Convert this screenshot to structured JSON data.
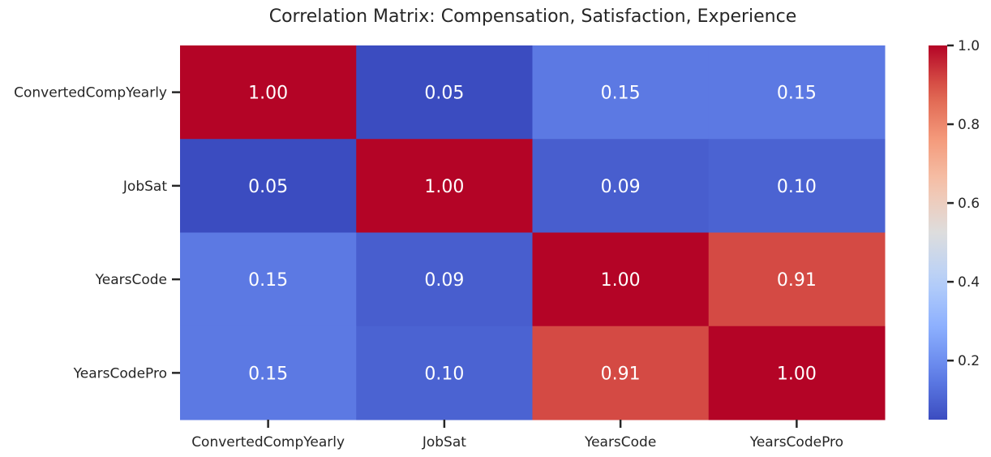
{
  "chart_data": {
    "type": "heatmap",
    "title": "Correlation Matrix: Compensation, Satisfaction, Experience",
    "x_categories": [
      "ConvertedCompYearly",
      "JobSat",
      "YearsCode",
      "YearsCodePro"
    ],
    "y_categories": [
      "ConvertedCompYearly",
      "JobSat",
      "YearsCode",
      "YearsCodePro"
    ],
    "values": [
      [
        1.0,
        0.05,
        0.15,
        0.15
      ],
      [
        0.05,
        1.0,
        0.09,
        0.1
      ],
      [
        0.15,
        0.09,
        1.0,
        0.91
      ],
      [
        0.15,
        0.1,
        0.91,
        1.0
      ]
    ],
    "colormap": "coolwarm",
    "colorbar": {
      "min": 0.05,
      "max": 1.0,
      "ticks": [
        0.2,
        0.4,
        0.6,
        0.8,
        1.0
      ],
      "tick_labels": [
        "0.2",
        "0.4",
        "0.6",
        "0.8",
        "1.0"
      ]
    },
    "annotation_format": "0.00"
  }
}
